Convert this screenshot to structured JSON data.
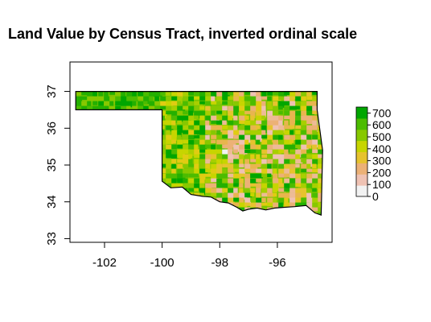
{
  "chart_data": {
    "type": "heatmap",
    "title": "Land Value by Census Tract, inverted ordinal scale",
    "xlabel": "",
    "ylabel": "",
    "xlim": [
      -103.2,
      -94.1
    ],
    "ylim": [
      32.9,
      37.8
    ],
    "x_ticks": [
      -102,
      -100,
      -98,
      -96
    ],
    "x_tick_labels": [
      "-102",
      "-100",
      "-98",
      "-96"
    ],
    "y_ticks": [
      33,
      34,
      35,
      36,
      37
    ],
    "y_tick_labels": [
      "33",
      "34",
      "35",
      "36",
      "37"
    ],
    "grid": false,
    "legend": {
      "position": "right",
      "type": "colorbar",
      "range": [
        0,
        750
      ],
      "ticks": [
        0,
        100,
        200,
        300,
        400,
        500,
        600,
        700
      ],
      "tick_labels": [
        "0",
        "100",
        "200",
        "300",
        "400",
        "500",
        "600",
        "700"
      ],
      "colors": [
        "#f2f2f2",
        "#efc2b3",
        "#ecb176",
        "#e6c32e",
        "#c7d500",
        "#87c800",
        "#4cbc00",
        "#00a600"
      ]
    },
    "region": "Oklahoma census tracts"
  }
}
